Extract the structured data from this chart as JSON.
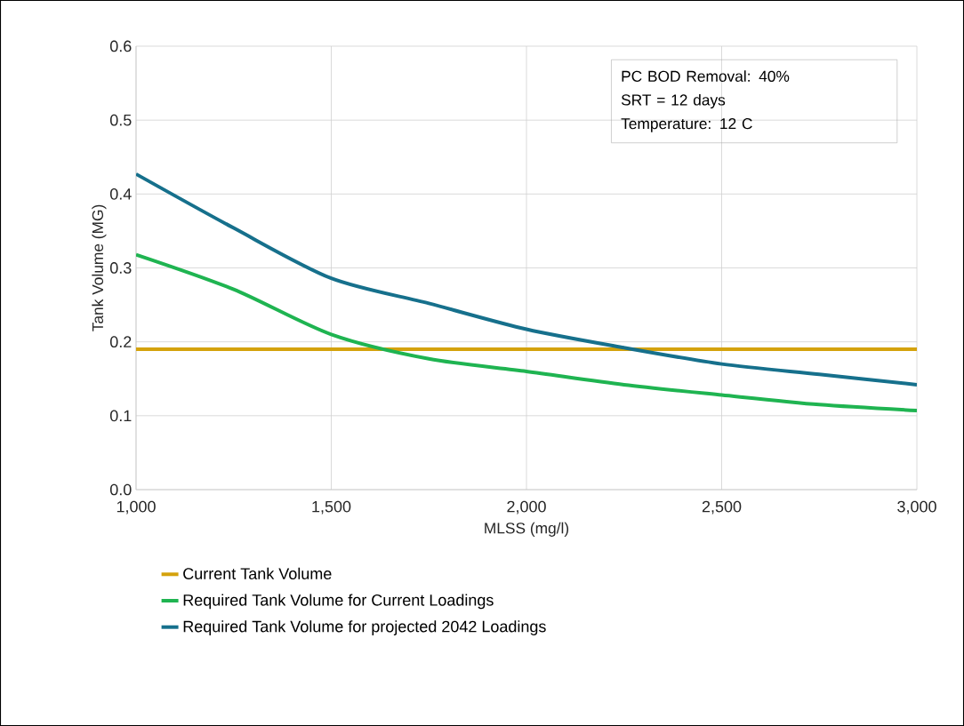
{
  "chart_data": {
    "type": "line",
    "xlabel": "MLSS (mg/l)",
    "ylabel": "Tank Volume (MG)",
    "xlim": [
      1000,
      3000
    ],
    "ylim": [
      0,
      0.6
    ],
    "xticks": [
      {
        "value": 1000,
        "label": "1,000"
      },
      {
        "value": 1500,
        "label": "1,500"
      },
      {
        "value": 2000,
        "label": "2,000"
      },
      {
        "value": 2500,
        "label": "2,500"
      },
      {
        "value": 3000,
        "label": "3,000"
      }
    ],
    "yticks": [
      {
        "value": 0,
        "label": "0.0"
      },
      0.1,
      0.2,
      0.3,
      0.4,
      0.5,
      0.6
    ],
    "grid": true,
    "legend": "bottom",
    "marker": "none",
    "line_style": "solid",
    "annotations": [
      "PC BOD Removal: 40%",
      "SRT = 12 days",
      "Temperature: 12 C"
    ],
    "series": [
      {
        "name": "Current Tank Volume",
        "color": "#d4a20c",
        "x": [
          1000,
          3000
        ],
        "values": [
          0.19,
          0.19
        ]
      },
      {
        "name": "Required Tank Volume for Current Loadings",
        "color": "#1fb451",
        "x": [
          1000,
          1250,
          1500,
          1750,
          2000,
          2250,
          2500,
          2750,
          3000
        ],
        "values": [
          0.318,
          0.271,
          0.21,
          0.177,
          0.16,
          0.142,
          0.128,
          0.115,
          0.107
        ]
      },
      {
        "name": "Required Tank Volume for projected 2042 Loadings",
        "color": "#16708c",
        "x": [
          1000,
          1250,
          1500,
          1750,
          2000,
          2250,
          2500,
          2750,
          3000
        ],
        "values": [
          0.427,
          0.354,
          0.286,
          0.252,
          0.217,
          0.192,
          0.17,
          0.156,
          0.142
        ]
      }
    ]
  }
}
